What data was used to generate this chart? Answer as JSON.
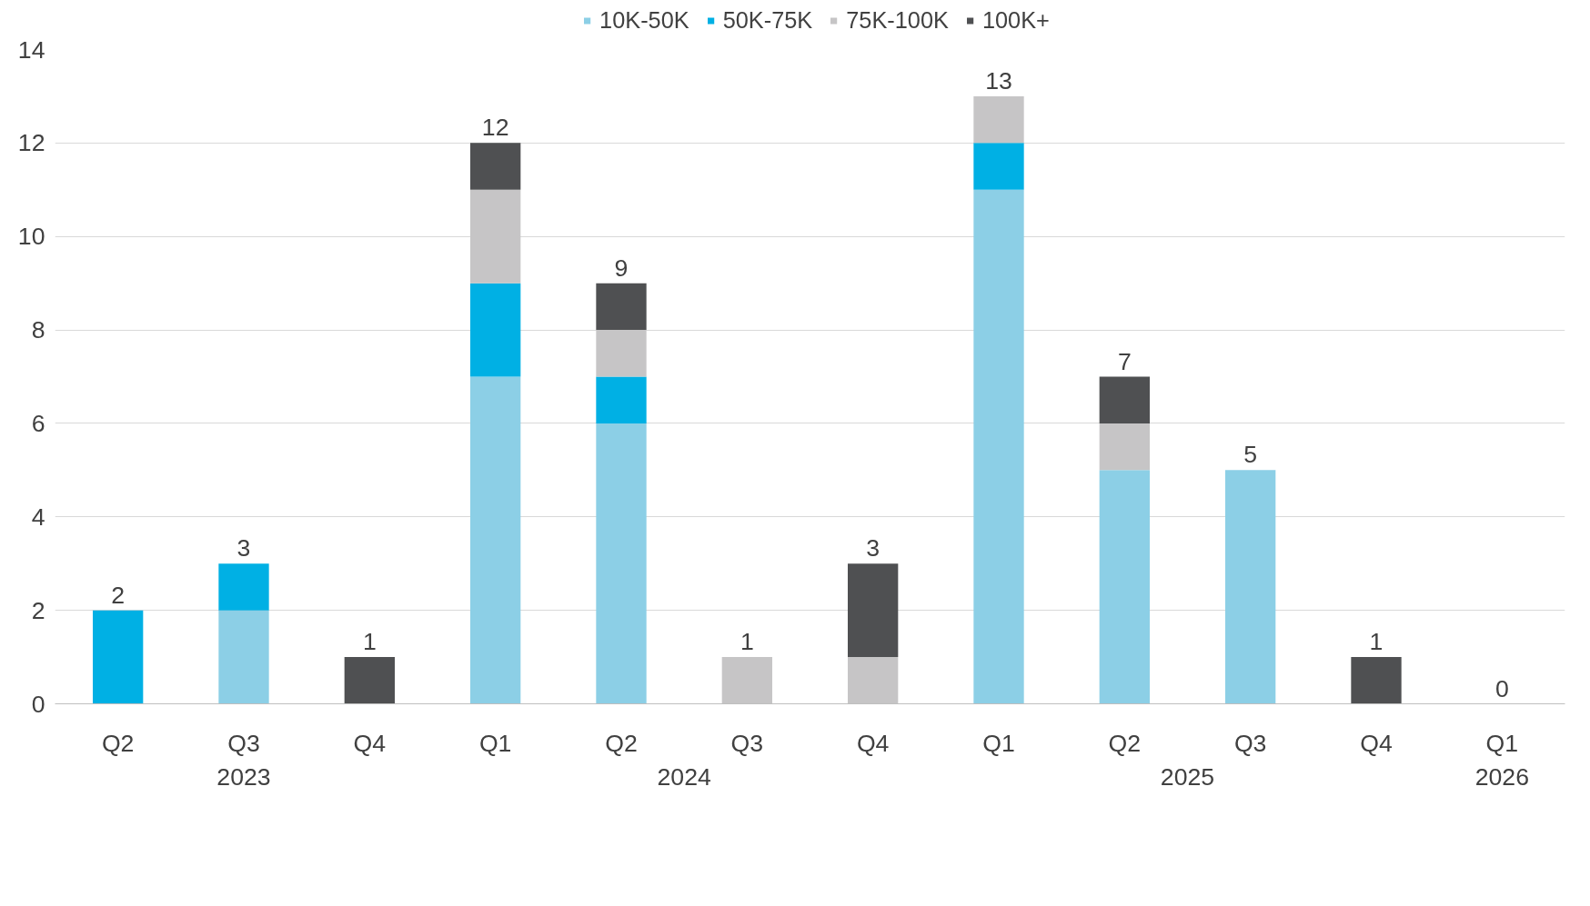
{
  "chart_data": {
    "type": "bar",
    "stacked": true,
    "categories": [
      "Q2",
      "Q3",
      "Q4",
      "Q1",
      "Q2",
      "Q3",
      "Q4",
      "Q1",
      "Q2",
      "Q3",
      "Q4",
      "Q1"
    ],
    "series": [
      {
        "name": "10K-50K",
        "color": "#8ccfe6",
        "values": [
          0,
          2,
          0,
          7,
          6,
          0,
          0,
          11,
          5,
          5,
          0,
          0
        ]
      },
      {
        "name": "50K-75K",
        "color": "#00b0e4",
        "values": [
          2,
          1,
          0,
          2,
          1,
          0,
          0,
          1,
          0,
          0,
          0,
          0
        ]
      },
      {
        "name": "75K-100K",
        "color": "#c6c5c6",
        "values": [
          0,
          0,
          0,
          2,
          1,
          1,
          1,
          1,
          1,
          0,
          0,
          0
        ]
      },
      {
        "name": "100K+",
        "color": "#4f5052",
        "values": [
          0,
          0,
          1,
          1,
          1,
          0,
          2,
          0,
          1,
          0,
          1,
          0
        ]
      }
    ],
    "totals": [
      "2",
      "3",
      "1",
      "12",
      "9",
      "1",
      "3",
      "13",
      "7",
      "5",
      "1",
      "0"
    ],
    "annotations": [
      "2023",
      "2024",
      "2025",
      "2026"
    ],
    "ylim": [
      0,
      14
    ],
    "yticks": [
      0,
      2,
      4,
      6,
      8,
      10,
      12,
      14
    ],
    "grid": "y",
    "legend": "top"
  }
}
